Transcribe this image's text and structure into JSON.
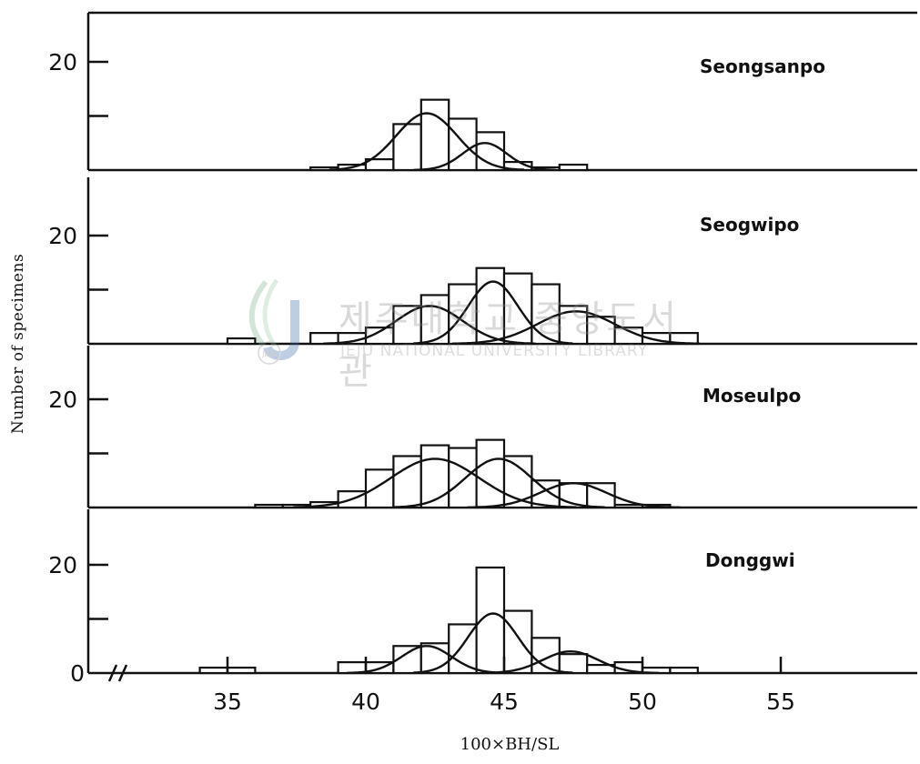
{
  "chart_data": {
    "type": "bar",
    "layout": "four stacked histogram panels sharing x axis",
    "xlabel": "100×BH/SL",
    "ylabel": "Number of specimens",
    "x_tick_labels": [
      "35",
      "40",
      "45",
      "50",
      "55"
    ],
    "x_ticks": [
      35,
      40,
      45,
      50,
      55
    ],
    "ylim": [
      0,
      22
    ],
    "y_tick_labels": [
      "20",
      "20",
      "20",
      "20",
      "0"
    ],
    "axis_break_symbol": "//",
    "bin_width": 1,
    "panels": [
      {
        "name": "Seongsanpo",
        "bins": [
          38,
          39,
          40,
          41,
          42,
          43,
          44,
          45,
          46,
          47
        ],
        "counts": [
          0.5,
          1,
          2,
          8.5,
          13,
          9.5,
          7,
          1.5,
          0.5,
          1
        ],
        "curves": [
          {
            "mean": 42.2,
            "sd": 1.1,
            "peak": 10.5
          },
          {
            "mean": 44.3,
            "sd": 0.8,
            "peak": 5.0
          }
        ]
      },
      {
        "name": "Seogwipo",
        "bins": [
          35,
          38,
          39,
          40,
          41,
          42,
          43,
          44,
          45,
          46,
          47,
          48,
          49,
          50,
          51
        ],
        "counts": [
          1,
          2,
          2,
          3,
          7,
          9,
          11,
          14,
          13,
          11,
          7,
          5,
          3,
          2,
          2
        ],
        "curves": [
          {
            "mean": 42.3,
            "sd": 1.2,
            "peak": 7.0
          },
          {
            "mean": 44.6,
            "sd": 0.9,
            "peak": 11.5
          },
          {
            "mean": 47.6,
            "sd": 1.4,
            "peak": 6.0
          }
        ]
      },
      {
        "name": "Moseulpo",
        "bins": [
          36,
          37,
          38,
          39,
          40,
          41,
          42,
          43,
          44,
          45,
          46,
          47,
          48,
          49,
          50
        ],
        "counts": [
          0.5,
          0.5,
          1,
          3,
          7,
          9.5,
          11.5,
          11,
          12.5,
          9.5,
          5,
          4.5,
          4.5,
          0.5,
          0.5
        ],
        "curves": [
          {
            "mean": 42.5,
            "sd": 1.6,
            "peak": 9.0
          },
          {
            "mean": 44.8,
            "sd": 1.2,
            "peak": 9.0
          },
          {
            "mean": 47.5,
            "sd": 1.2,
            "peak": 4.5
          }
        ]
      },
      {
        "name": "Donggwi",
        "bins": [
          34,
          35,
          39,
          40,
          41,
          42,
          43,
          44,
          45,
          46,
          47,
          48,
          49,
          50,
          51
        ],
        "counts": [
          1,
          1,
          2,
          2,
          5,
          5.5,
          9,
          19.5,
          11.5,
          6.5,
          3.5,
          1.5,
          2,
          1,
          1
        ],
        "curves": [
          {
            "mean": 42.2,
            "sd": 0.9,
            "peak": 5.0
          },
          {
            "mean": 44.6,
            "sd": 0.9,
            "peak": 11.0
          },
          {
            "mean": 47.4,
            "sd": 1.0,
            "peak": 4.0
          }
        ]
      }
    ]
  },
  "watermark": {
    "korean": "제주대학교 중앙도서관",
    "english": "JEJU NATIONAL UNIVERSITY LIBRARY",
    "logo_text": "JEJU"
  },
  "colors": {
    "ink": "#111111",
    "watermark_green": "#7fb08a",
    "watermark_blue": "#3a6aa8"
  }
}
